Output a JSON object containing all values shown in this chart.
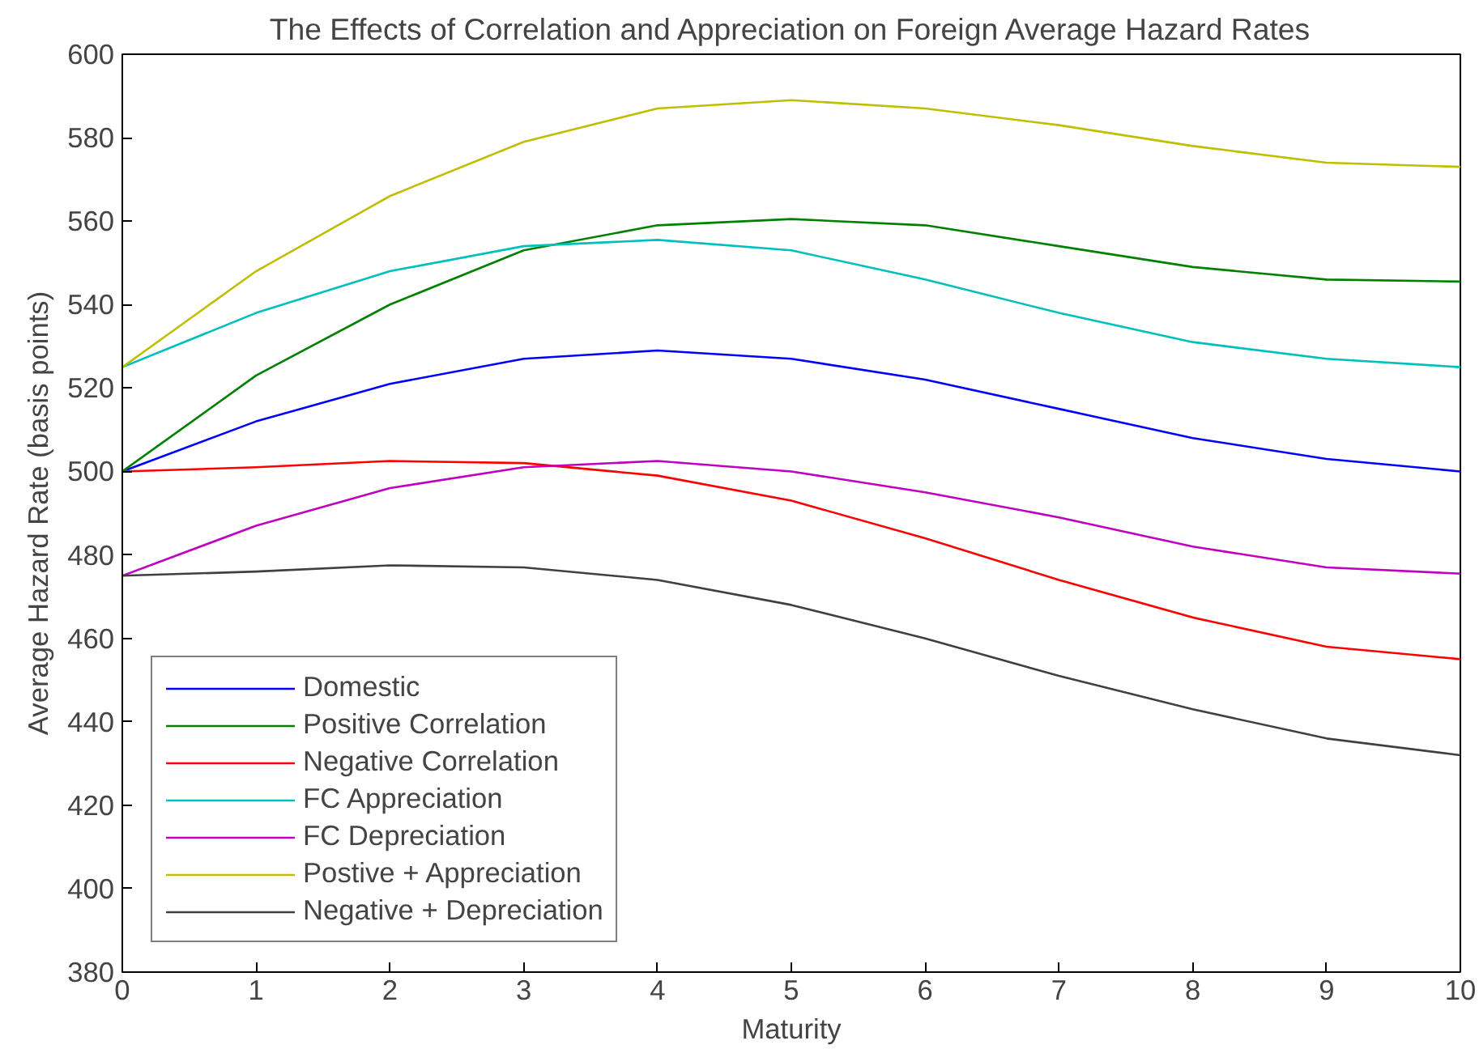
{
  "chart_data": {
    "type": "line",
    "title": "The Effects of Correlation and Appreciation on Foreign Average Hazard Rates",
    "xlabel": "Maturity",
    "ylabel": "Average Hazard Rate (basis points)",
    "x": [
      0,
      1,
      2,
      3,
      4,
      5,
      6,
      7,
      8,
      9,
      10
    ],
    "series": [
      {
        "name": "Domestic",
        "color": "#0000ff",
        "values": [
          500,
          512,
          521,
          527,
          529,
          527,
          522,
          515,
          508,
          503,
          500
        ]
      },
      {
        "name": "Positive Correlation",
        "color": "#008000",
        "values": [
          500,
          523,
          540,
          553,
          559,
          560.5,
          559,
          554,
          549,
          546,
          545.5
        ]
      },
      {
        "name": "Negative Correlation",
        "color": "#ff0000",
        "values": [
          500,
          501,
          502.5,
          502,
          499,
          493,
          484,
          474,
          465,
          458,
          455
        ]
      },
      {
        "name": "FC Appreciation",
        "color": "#00bfbf",
        "values": [
          525,
          538,
          548,
          554,
          555.5,
          553,
          546,
          538,
          531,
          527,
          525
        ]
      },
      {
        "name": "FC Depreciation",
        "color": "#bf00bf",
        "values": [
          475,
          487,
          496,
          501,
          502.5,
          500,
          495,
          489,
          482,
          477,
          475.5
        ]
      },
      {
        "name": "Postive + Appreciation",
        "color": "#bfbf00",
        "values": [
          525,
          548,
          566,
          579,
          587,
          589,
          587,
          583,
          578,
          574,
          573
        ]
      },
      {
        "name": "Negative + Depreciation",
        "color": "#404040",
        "values": [
          475,
          476,
          477.5,
          477,
          474,
          468,
          460,
          451,
          443,
          436,
          432
        ]
      }
    ],
    "xlim": [
      0,
      10
    ],
    "xticks": [
      0,
      1,
      2,
      3,
      4,
      5,
      6,
      7,
      8,
      9,
      10
    ],
    "ylim": [
      380,
      600
    ],
    "yticks": [
      380,
      400,
      420,
      440,
      460,
      480,
      500,
      520,
      540,
      560,
      580,
      600
    ],
    "legend": "bottom left",
    "marker": "none",
    "line_style": "solid"
  }
}
